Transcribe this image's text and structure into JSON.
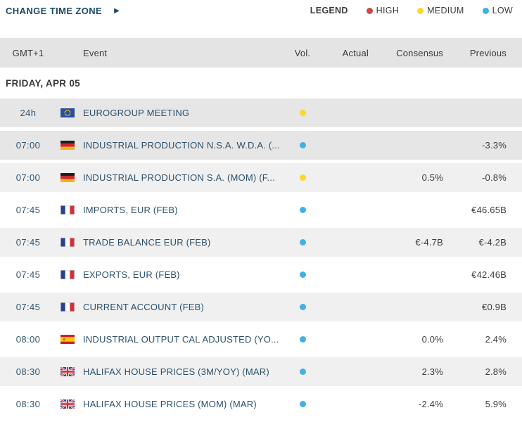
{
  "toolbar": {
    "change_time_zone_label": "CHANGE TIME ZONE",
    "legend_label": "LEGEND",
    "legend_items": [
      {
        "label": "HIGH",
        "color": "#c64a4a"
      },
      {
        "label": "MEDIUM",
        "color": "#ffd629"
      },
      {
        "label": "LOW",
        "color": "#3eb1e6"
      }
    ]
  },
  "table": {
    "columns": {
      "time": "GMT+1",
      "event": "Event",
      "vol": "Vol.",
      "actual": "Actual",
      "consensus": "Consensus",
      "previous": "Previous"
    },
    "section": {
      "date_label": "FRIDAY, APR 05"
    },
    "vol_colors": {
      "high": "#c64a4a",
      "medium": "#ffd629",
      "low": "#3eb1e6"
    },
    "rows": [
      {
        "time": "24h",
        "country": "eu",
        "event": "EUROGROUP MEETING",
        "vol": "medium",
        "actual": "",
        "consensus": "",
        "previous": "",
        "bg": "#e6e6e6"
      },
      {
        "time": "07:00",
        "country": "de",
        "event": "INDUSTRIAL PRODUCTION N.S.A. W.D.A. (...",
        "vol": "low",
        "actual": "",
        "consensus": "",
        "previous": "-3.3%",
        "bg": "#e6e6e6"
      },
      {
        "time": "07:00",
        "country": "de",
        "event": "INDUSTRIAL PRODUCTION S.A. (MOM) (F...",
        "vol": "medium",
        "actual": "",
        "consensus": "0.5%",
        "previous": "-0.8%",
        "bg": "#f0f0f0"
      },
      {
        "time": "07:45",
        "country": "fr",
        "event": "IMPORTS, EUR (FEB)",
        "vol": "low",
        "actual": "",
        "consensus": "",
        "previous": "€46.65B",
        "bg": "#ffffff"
      },
      {
        "time": "07:45",
        "country": "fr",
        "event": "TRADE BALANCE EUR (FEB)",
        "vol": "low",
        "actual": "",
        "consensus": "€-4.7B",
        "previous": "€-4.2B",
        "bg": "#f0f0f0"
      },
      {
        "time": "07:45",
        "country": "fr",
        "event": "EXPORTS, EUR (FEB)",
        "vol": "low",
        "actual": "",
        "consensus": "",
        "previous": "€42.46B",
        "bg": "#ffffff"
      },
      {
        "time": "07:45",
        "country": "fr",
        "event": "CURRENT ACCOUNT (FEB)",
        "vol": "low",
        "actual": "",
        "consensus": "",
        "previous": "€0.9B",
        "bg": "#f0f0f0"
      },
      {
        "time": "08:00",
        "country": "es",
        "event": "INDUSTRIAL OUTPUT CAL ADJUSTED (YO...",
        "vol": "low",
        "actual": "",
        "consensus": "0.0%",
        "previous": "2.4%",
        "bg": "#ffffff"
      },
      {
        "time": "08:30",
        "country": "gb",
        "event": "HALIFAX HOUSE PRICES (3M/YOY) (MAR)",
        "vol": "low",
        "actual": "",
        "consensus": "2.3%",
        "previous": "2.8%",
        "bg": "#f0f0f0"
      },
      {
        "time": "08:30",
        "country": "gb",
        "event": "HALIFAX HOUSE PRICES (MOM) (MAR)",
        "vol": "low",
        "actual": "",
        "consensus": "-2.4%",
        "previous": "5.9%",
        "bg": "#ffffff"
      }
    ]
  }
}
